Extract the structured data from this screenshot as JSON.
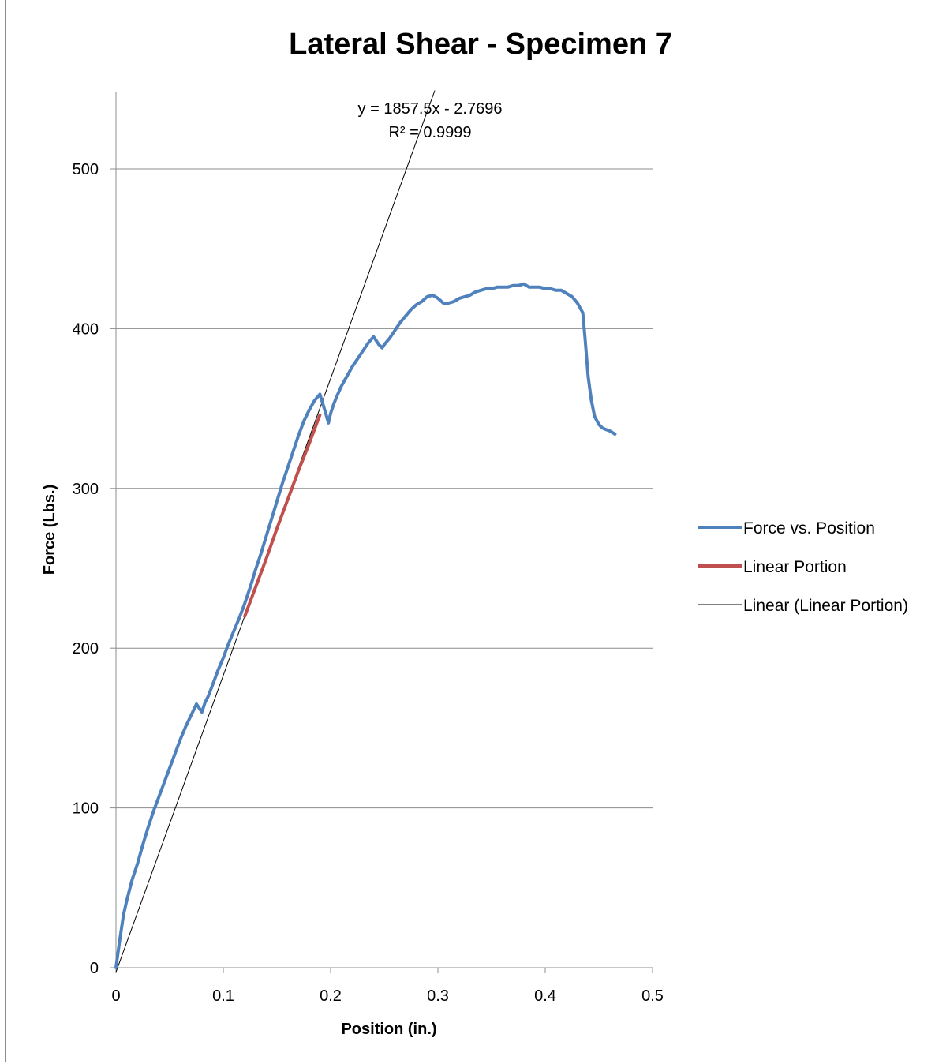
{
  "chart_data": {
    "type": "scatter",
    "title": "Lateral Shear - Specimen 7",
    "xlabel": "Position (in.)",
    "ylabel": "Force (Lbs.)",
    "xlim": [
      0,
      0.5
    ],
    "ylim": [
      0,
      550
    ],
    "x_ticks": [
      "0",
      "0.1",
      "0.2",
      "0.3",
      "0.4",
      "0.5"
    ],
    "y_ticks": [
      "0",
      "100",
      "200",
      "300",
      "400",
      "500"
    ],
    "grid": "horizontal major gridlines",
    "legend_position": "right",
    "series": [
      {
        "name": "Force vs. Position",
        "color": "#4f81bd",
        "x": [
          0,
          0.003,
          0.007,
          0.01,
          0.015,
          0.02,
          0.025,
          0.03,
          0.035,
          0.04,
          0.045,
          0.05,
          0.055,
          0.06,
          0.065,
          0.07,
          0.075,
          0.08,
          0.083,
          0.086,
          0.09,
          0.095,
          0.1,
          0.105,
          0.11,
          0.115,
          0.12,
          0.125,
          0.13,
          0.135,
          0.14,
          0.145,
          0.15,
          0.155,
          0.16,
          0.165,
          0.17,
          0.175,
          0.18,
          0.185,
          0.19,
          0.195,
          0.198,
          0.2,
          0.203,
          0.206,
          0.21,
          0.215,
          0.22,
          0.225,
          0.23,
          0.235,
          0.24,
          0.245,
          0.248,
          0.25,
          0.255,
          0.26,
          0.265,
          0.27,
          0.275,
          0.28,
          0.285,
          0.29,
          0.295,
          0.3,
          0.305,
          0.31,
          0.315,
          0.32,
          0.325,
          0.33,
          0.335,
          0.34,
          0.345,
          0.35,
          0.355,
          0.36,
          0.365,
          0.37,
          0.375,
          0.38,
          0.385,
          0.39,
          0.395,
          0.4,
          0.405,
          0.41,
          0.415,
          0.42,
          0.425,
          0.43,
          0.435,
          0.437,
          0.44,
          0.443,
          0.446,
          0.45,
          0.453,
          0.456,
          0.46,
          0.465
        ],
        "y": [
          0,
          15,
          33,
          42,
          55,
          65,
          77,
          88,
          98,
          107,
          116,
          125,
          134,
          143,
          151,
          158,
          165,
          160,
          166,
          170,
          177,
          186,
          194,
          203,
          211,
          219,
          228,
          238,
          249,
          259,
          270,
          281,
          292,
          303,
          313,
          323,
          333,
          342,
          349,
          355,
          359,
          348,
          341,
          347,
          353,
          358,
          364,
          370,
          376,
          381,
          386,
          391,
          395,
          390,
          388,
          390,
          394,
          399,
          404,
          408,
          412,
          415,
          417,
          420,
          421,
          419,
          416,
          416,
          417,
          419,
          420,
          421,
          423,
          424,
          425,
          425,
          426,
          426,
          426,
          427,
          427,
          428,
          426,
          426,
          426,
          425,
          425,
          424,
          424,
          422,
          420,
          416,
          410,
          395,
          370,
          355,
          345,
          340,
          338,
          337,
          336,
          334
        ]
      },
      {
        "name": "Linear Portion",
        "color": "#c0504d",
        "x": [
          0.12,
          0.13,
          0.14,
          0.15,
          0.16,
          0.17,
          0.18,
          0.19
        ],
        "y": [
          220,
          238,
          256,
          275,
          293,
          311,
          328,
          346
        ]
      },
      {
        "name": "Linear (Linear Portion)",
        "color": "#000000",
        "x": [
          0,
          0.297
        ],
        "y": [
          -2.7696,
          548.9
        ]
      }
    ],
    "trendline_equation": "y = 1857.5x - 2.7696",
    "trendline_r2": "R² = 0.9999"
  }
}
